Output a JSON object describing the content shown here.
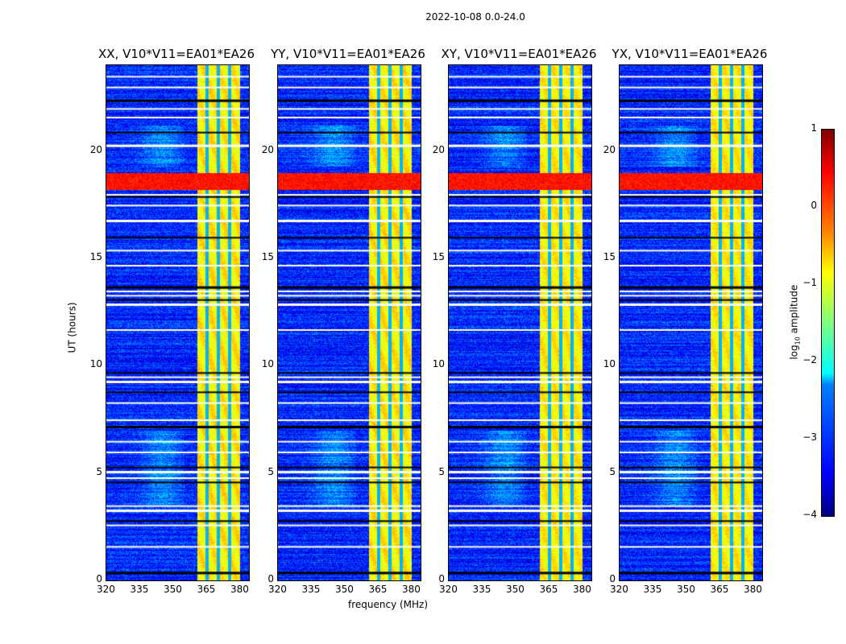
{
  "suptitle": "2022-10-08 0.0-24.0",
  "chart_data": {
    "type": "heatmap",
    "title": "2022-10-08 0.0-24.0",
    "panels": [
      {
        "title": "XX, V10*V11=EA01*EA26"
      },
      {
        "title": "YY, V10*V11=EA01*EA26"
      },
      {
        "title": "XY, V10*V11=EA01*EA26"
      },
      {
        "title": "YX, V10*V11=EA01*EA26"
      }
    ],
    "xlabel": "frequency (MHz)",
    "ylabel": "UT (hours)",
    "xlim": [
      320,
      384
    ],
    "ylim": [
      0,
      24
    ],
    "xticks": [
      "320",
      "335",
      "350",
      "365",
      "380"
    ],
    "xtick_values": [
      320,
      335,
      350,
      365,
      380
    ],
    "yticks": [
      "0",
      "5",
      "10",
      "15",
      "20"
    ],
    "ytick_values": [
      0,
      5,
      10,
      15,
      20
    ],
    "colorbar": {
      "label": "log10 amplitude",
      "label_main": "log",
      "label_sub": "10",
      "label_rest": " amplitude",
      "range": [
        -4,
        1
      ],
      "ticks": [
        "1",
        "0",
        "−1",
        "−2",
        "−3",
        "−4"
      ],
      "tick_values": [
        1,
        0,
        -1,
        -2,
        -3,
        -4
      ],
      "colormap": "jet"
    },
    "background_level": -3.2,
    "rfi_band_mhz": [
      360.5,
      380
    ],
    "rfi_band_level": -0.8,
    "rfi_gaps_mhz": [
      365,
      370,
      375
    ],
    "strong_event_hours": [
      18.2,
      19.0
    ],
    "strong_event_level": 0.3,
    "flagged_hours": [
      0.4,
      1.6,
      2.6,
      2.8,
      3.3,
      3.5,
      4.6,
      4.8,
      5.1,
      5.3,
      6.0,
      6.5,
      7.2,
      7.5,
      8.3,
      8.8,
      9.3,
      9.5,
      9.7,
      11.7,
      12.9,
      13.1,
      13.3,
      13.5,
      13.7,
      14.7,
      15.4,
      16.0,
      16.8,
      17.5,
      17.9,
      18.0,
      20.3,
      20.9,
      21.6,
      22.0,
      22.4,
      23.0,
      23.5
    ]
  }
}
